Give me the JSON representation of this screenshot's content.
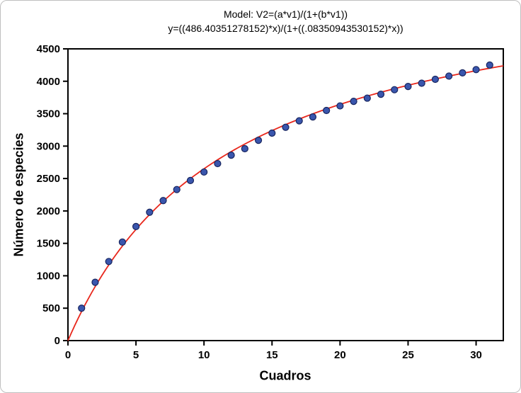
{
  "chart_data": {
    "type": "scatter",
    "title": "Model: V2=(a*v1)/(1+(b*v1))",
    "subtitle": "y=((486.40351278152)*x)/(1+((.08350943530152)*x))",
    "xlabel": "Cuadros",
    "ylabel": "Número de especies",
    "xlim": [
      0,
      32
    ],
    "ylim": [
      0,
      4500
    ],
    "xticks": [
      0,
      5,
      10,
      15,
      20,
      25,
      30
    ],
    "yticks": [
      0,
      500,
      1000,
      1500,
      2000,
      2500,
      3000,
      3500,
      4000,
      4500
    ],
    "grid": false,
    "legend": null,
    "points": {
      "x": [
        1,
        2,
        3,
        4,
        5,
        6,
        7,
        8,
        9,
        10,
        11,
        12,
        13,
        14,
        15,
        16,
        17,
        18,
        19,
        20,
        21,
        22,
        23,
        24,
        25,
        26,
        27,
        28,
        29,
        30,
        31
      ],
      "y": [
        500,
        900,
        1220,
        1520,
        1760,
        1980,
        2160,
        2330,
        2470,
        2600,
        2730,
        2860,
        2960,
        3090,
        3200,
        3290,
        3390,
        3450,
        3550,
        3620,
        3690,
        3740,
        3800,
        3870,
        3920,
        3970,
        4030,
        4080,
        4130,
        4180,
        4250
      ]
    },
    "fit_curve": {
      "model": "y=(a*x)/(1+(b*x))",
      "a": 486.40351278152,
      "b": 0.08350943530152,
      "color": "#e8271c"
    },
    "point_style": {
      "fill": "#3a56ad",
      "stroke": "#17255f",
      "radius": 4.5
    },
    "axis_color": "#000000"
  }
}
